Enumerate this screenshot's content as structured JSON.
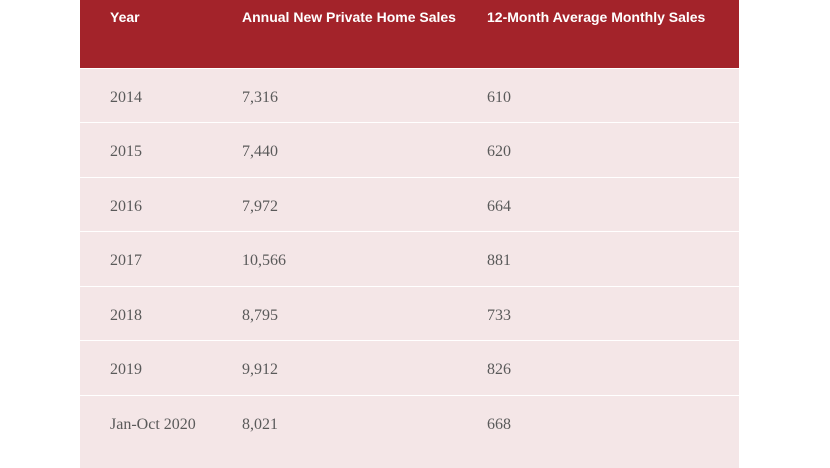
{
  "table": {
    "headers": [
      "Year",
      "Annual New Private Home Sales",
      "12-Month Average Monthly Sales"
    ],
    "rows": [
      {
        "year": "2014",
        "annual": "7,316",
        "monthly": "610"
      },
      {
        "year": "2015",
        "annual": "7,440",
        "monthly": "620"
      },
      {
        "year": "2016",
        "annual": "7,972",
        "monthly": "664"
      },
      {
        "year": "2017",
        "annual": "10,566",
        "monthly": "881"
      },
      {
        "year": "2018",
        "annual": "8,795",
        "monthly": "733"
      },
      {
        "year": "2019",
        "annual": "9,912",
        "monthly": "826"
      },
      {
        "year": "Jan-Oct 2020",
        "annual": "8,021",
        "monthly": "668"
      }
    ]
  },
  "colors": {
    "header_bg": "#a3232a",
    "body_bg": "#f4e6e7",
    "header_text": "#ffffff",
    "body_text": "#5a5a5a"
  }
}
